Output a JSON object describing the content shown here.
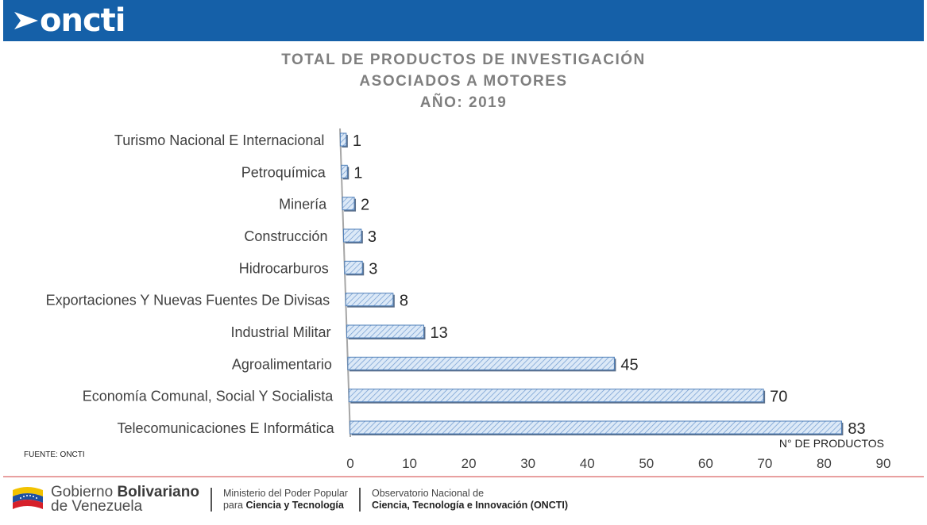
{
  "header": {
    "logo_text": "oncti"
  },
  "chart_data": {
    "type": "bar",
    "orientation": "horizontal",
    "title": [
      "TOTAL DE PRODUCTOS DE INVESTIGACIÓN",
      "ASOCIADOS A MOTORES",
      "AÑO: 2019"
    ],
    "categories": [
      "Turismo Nacional E Internacional",
      "Petroquímica",
      "Minería",
      "Construcción",
      "Hidrocarburos",
      "Exportaciones Y Nuevas Fuentes De Divisas",
      "Industrial Militar",
      "Agroalimentario",
      "Economía Comunal, Social Y Socialista",
      "Telecomunicaciones E Informática"
    ],
    "values": [
      1,
      1,
      2,
      3,
      3,
      8,
      13,
      45,
      70,
      83
    ],
    "xlabel": "N° DE PRODUCTOS",
    "xlim": [
      0,
      90
    ],
    "xticks": [
      "0",
      "10",
      "20",
      "30",
      "40",
      "50",
      "60",
      "70",
      "80",
      "90"
    ],
    "grid": false,
    "bar_fill": "#dce9f7",
    "bar_stroke": "#4f7fb8",
    "hatch_color": "#6f9ad0"
  },
  "source": "FUENTE: ONCTI",
  "footer": {
    "gov_line1_regular": "Gobierno ",
    "gov_line1_bold": "Bolivariano",
    "gov_line2": "de Venezuela",
    "ministry_line1": "Ministerio del Poder Popular",
    "ministry_line2_regular": "para ",
    "ministry_line2_bold": "Ciencia y Tecnología",
    "obs_line1": "Observatorio Nacional de",
    "obs_line2": "Ciencia, Tecnología e Innovación (ONCTI)"
  }
}
